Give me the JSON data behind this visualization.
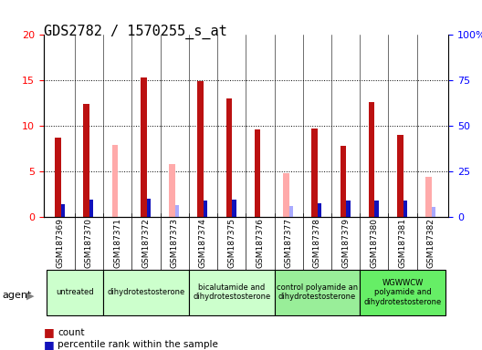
{
  "title": "GDS2782 / 1570255_s_at",
  "samples": [
    "GSM187369",
    "GSM187370",
    "GSM187371",
    "GSM187372",
    "GSM187373",
    "GSM187374",
    "GSM187375",
    "GSM187376",
    "GSM187377",
    "GSM187378",
    "GSM187379",
    "GSM187380",
    "GSM187381",
    "GSM187382"
  ],
  "count_values": [
    8.7,
    12.4,
    null,
    15.3,
    null,
    14.9,
    13.0,
    9.6,
    null,
    9.7,
    7.8,
    12.6,
    9.0,
    null
  ],
  "rank_values": [
    7.2,
    9.7,
    null,
    10.1,
    null,
    9.0,
    9.5,
    null,
    null,
    7.8,
    8.9,
    9.0,
    9.3,
    null
  ],
  "absent_value": [
    null,
    null,
    7.9,
    null,
    5.8,
    null,
    null,
    null,
    4.8,
    null,
    null,
    null,
    null,
    4.4
  ],
  "absent_rank": [
    null,
    null,
    null,
    null,
    6.6,
    null,
    null,
    null,
    5.9,
    null,
    null,
    null,
    null,
    5.6
  ],
  "groups": [
    {
      "label": "untreated",
      "start": 0,
      "end": 2,
      "color": "#ccffcc"
    },
    {
      "label": "dihydrotestosterone",
      "start": 2,
      "end": 5,
      "color": "#ccffcc"
    },
    {
      "label": "bicalutamide and\ndihydrotestosterone",
      "start": 5,
      "end": 8,
      "color": "#ccffcc"
    },
    {
      "label": "control polyamide an\ndihydrotestosterone",
      "start": 8,
      "end": 11,
      "color": "#99ff99"
    },
    {
      "label": "WGWWCW\npolyamide and\ndihydrotestosterone",
      "start": 11,
      "end": 14,
      "color": "#66ff66"
    }
  ],
  "ylim_left": [
    0,
    20
  ],
  "ylim_right": [
    0,
    100
  ],
  "yticks_left": [
    0,
    5,
    10,
    15,
    20
  ],
  "yticks_right": [
    0,
    25,
    50,
    75,
    100
  ],
  "ytick_labels_right": [
    "0",
    "25",
    "50",
    "75",
    "100%"
  ],
  "count_color": "#bb1111",
  "rank_color": "#1111bb",
  "absent_value_color": "#ffaaaa",
  "absent_rank_color": "#aaaaff",
  "bar_width": 0.35,
  "title_fontsize": 11
}
